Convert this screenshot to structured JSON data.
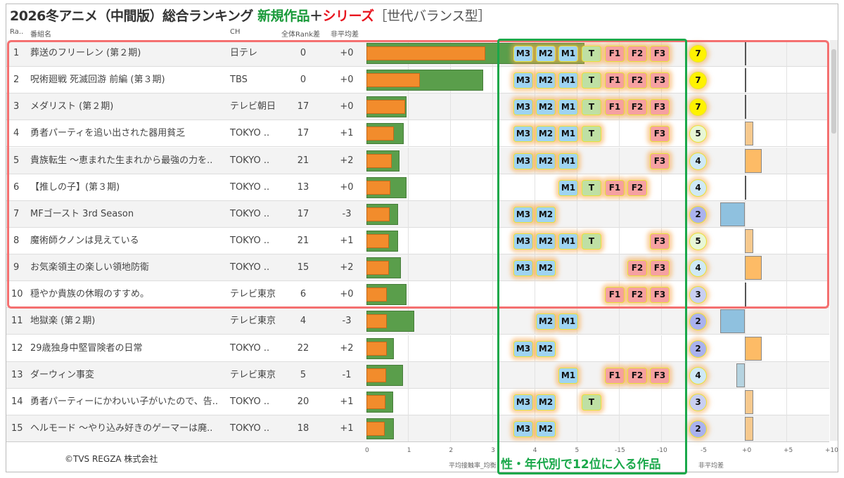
{
  "title": {
    "main": "2026冬アニメ（中間版）総合ランキング",
    "new": "新規作品",
    "plus": "＋",
    "series": "シリーズ",
    "bracket": "［世代バランス型］"
  },
  "headers": {
    "rank": "Ra..",
    "name": "番組名",
    "ch": "CH",
    "rank_diff": "全体Rank差",
    "nonavg": "非平均差"
  },
  "colors": {
    "green_bar": "#5a9e4b",
    "orange_bar": "#f28c2c",
    "male": "#9fd4f2",
    "teen": "#bfe0a4",
    "female": "#f6a1a1",
    "highlight_red": "#f47070",
    "highlight_green": "#1aa84a"
  },
  "tag_labels": [
    "M3",
    "M2",
    "M1",
    "T",
    "F1",
    "F2",
    "F3"
  ],
  "rows": [
    {
      "rank": "1",
      "name": "葬送のフリーレン (第２期)",
      "ch": "日テレ",
      "rank_diff": "0",
      "nonavg": "+0",
      "nonavg_value": 0,
      "green": 5.2,
      "orange": 2.83,
      "tags": [
        "M3",
        "M2",
        "M1",
        "T",
        "F1",
        "F2",
        "F3"
      ],
      "count": "7"
    },
    {
      "rank": "2",
      "name": "呪術廻戦 死滅回游 前編 (第３期)",
      "ch": "TBS",
      "rank_diff": "0",
      "nonavg": "+0",
      "nonavg_value": 0,
      "green": 2.78,
      "orange": 1.27,
      "tags": [
        "M3",
        "M2",
        "M1",
        "T",
        "F1",
        "F2",
        "F3"
      ],
      "count": "7"
    },
    {
      "rank": "3",
      "name": "メダリスト (第２期)",
      "ch": "テレビ朝日",
      "rank_diff": "17",
      "nonavg": "+0",
      "nonavg_value": 0,
      "green": 0.95,
      "orange": 0.92,
      "tags": [
        "M3",
        "M2",
        "M1",
        "T",
        "F1",
        "F2",
        "F3"
      ],
      "count": "7"
    },
    {
      "rank": "4",
      "name": "勇者パーティを追い出された器用貧乏",
      "ch": "TOKYO ..",
      "rank_diff": "17",
      "nonavg": "+1",
      "nonavg_value": 1,
      "green": 0.88,
      "orange": 0.65,
      "tags": [
        "M3",
        "M2",
        "M1",
        "T",
        "F3"
      ],
      "count": "5"
    },
    {
      "rank": "5",
      "name": "貴族転生 ～恵まれた生まれから最強の力を..",
      "ch": "TOKYO ..",
      "rank_diff": "21",
      "nonavg": "+2",
      "nonavg_value": 2,
      "green": 0.78,
      "orange": 0.6,
      "tags": [
        "M3",
        "M2",
        "M1",
        "F3"
      ],
      "count": "4"
    },
    {
      "rank": "6",
      "name": "【推しの子】(第３期)",
      "ch": "TOKYO ..",
      "rank_diff": "13",
      "nonavg": "+0",
      "nonavg_value": 0,
      "green": 0.95,
      "orange": 0.57,
      "tags": [
        "M1",
        "T",
        "F1",
        "F2"
      ],
      "count": "4"
    },
    {
      "rank": "7",
      "name": "MFゴースト 3rd Season",
      "ch": "TOKYO ..",
      "rank_diff": "17",
      "nonavg": "-3",
      "nonavg_value": -3,
      "green": 0.76,
      "orange": 0.56,
      "tags": [
        "M3",
        "M2"
      ],
      "count": "2"
    },
    {
      "rank": "8",
      "name": "魔術師クノンは見えている",
      "ch": "TOKYO ..",
      "rank_diff": "21",
      "nonavg": "+1",
      "nonavg_value": 1,
      "green": 0.76,
      "orange": 0.54,
      "tags": [
        "M3",
        "M2",
        "M1",
        "T",
        "F3"
      ],
      "count": "5"
    },
    {
      "rank": "9",
      "name": "お気楽領主の楽しい領地防衛",
      "ch": "TOKYO ..",
      "rank_diff": "15",
      "nonavg": "+2",
      "nonavg_value": 2,
      "green": 0.82,
      "orange": 0.54,
      "tags": [
        "M3",
        "M2",
        "F2",
        "F3"
      ],
      "count": "4"
    },
    {
      "rank": "10",
      "name": "穏やか貴族の休暇のすすめ。",
      "ch": "テレビ東京",
      "rank_diff": "6",
      "nonavg": "+0",
      "nonavg_value": 0,
      "green": 0.95,
      "orange": 0.49,
      "tags": [
        "F1",
        "F2",
        "F3"
      ],
      "count": "3"
    },
    {
      "rank": "11",
      "name": "地獄楽 (第２期)",
      "ch": "テレビ東京",
      "rank_diff": "4",
      "nonavg": "-3",
      "nonavg_value": -3,
      "green": 1.14,
      "orange": 0.49,
      "tags": [
        "M2",
        "M1"
      ],
      "count": "2"
    },
    {
      "rank": "12",
      "name": "29歳独身中堅冒険者の日常",
      "ch": "TOKYO ..",
      "rank_diff": "22",
      "nonavg": "+2",
      "nonavg_value": 2,
      "green": 0.65,
      "orange": 0.49,
      "tags": [
        "M3",
        "M2"
      ],
      "count": "2"
    },
    {
      "rank": "13",
      "name": "ダーウィン事変",
      "ch": "テレビ東京",
      "rank_diff": "5",
      "nonavg": "-1",
      "nonavg_value": -1,
      "green": 0.87,
      "orange": 0.47,
      "tags": [
        "M1",
        "F1",
        "F2",
        "F3"
      ],
      "count": "4"
    },
    {
      "rank": "14",
      "name": "勇者パーティーにかわいい子がいたので、告..",
      "ch": "TOKYO ..",
      "rank_diff": "20",
      "nonavg": "+1",
      "nonavg_value": 1,
      "green": 0.64,
      "orange": 0.45,
      "tags": [
        "M3",
        "M2",
        "T"
      ],
      "count": "3"
    },
    {
      "rank": "15",
      "name": "ヘルモード ～やり込み好きのゲーマーは廃..",
      "ch": "TOKYO ..",
      "rank_diff": "18",
      "nonavg": "+1",
      "nonavg_value": 1,
      "green": 0.65,
      "orange": 0.44,
      "tags": [
        "M3",
        "M2"
      ],
      "count": "2"
    }
  ],
  "axis": {
    "bar_ticks": [
      "0",
      "1",
      "2",
      "3",
      "4",
      "5"
    ],
    "rank_ticks": [
      "-15",
      "-10"
    ],
    "diff_ticks": [
      "-5",
      "+0",
      "+5",
      "+10"
    ],
    "bar_label": "平均接触率_均衡",
    "diff_label": "非平均差"
  },
  "highlight_label": "性・年代別で12位に入る作品",
  "copyright": "©TVS REGZA 株式会社"
}
